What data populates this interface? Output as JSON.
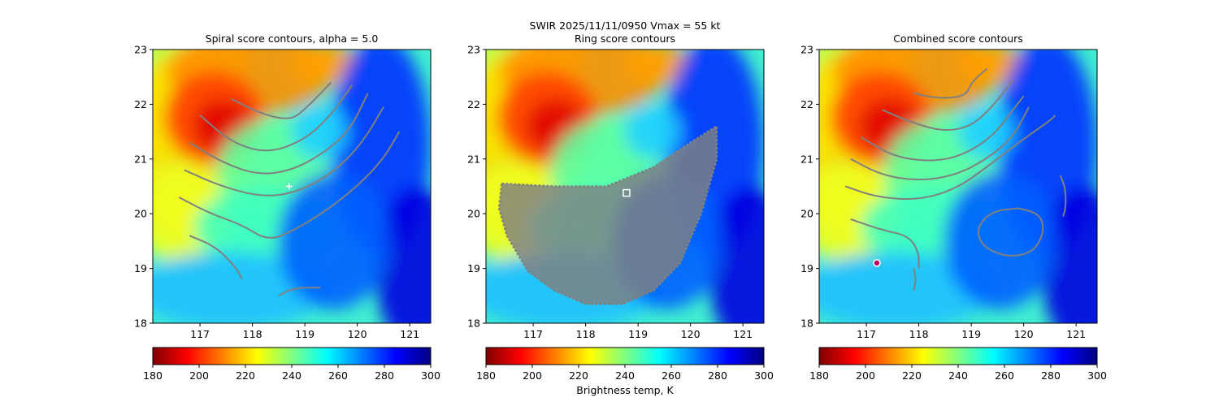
{
  "figure": {
    "suptitle": "SWIR  2025/11/11/0950    Vmax = 55 kt"
  },
  "colorbar_label": "Brightness temp, K",
  "colormap": [
    "#800000",
    "#ff0000",
    "#ff8000",
    "#ffff00",
    "#80ff80",
    "#00ffff",
    "#0080ff",
    "#0000ff",
    "#000080"
  ],
  "contour_color": "#808080",
  "chart_data": [
    {
      "type": "heatmap",
      "title": "Spiral score contours, alpha =  5.0",
      "xlim": [
        116.1,
        121.4
      ],
      "ylim": [
        18,
        23
      ],
      "xticks": [
        "117",
        "118",
        "119",
        "120",
        "121"
      ],
      "yticks": [
        "18",
        "19",
        "20",
        "21",
        "22",
        "23"
      ],
      "colorbar": {
        "range": [
          180,
          300
        ],
        "ticks": [
          "180",
          "200",
          "220",
          "240",
          "260",
          "280",
          "300"
        ]
      },
      "center_marker": {
        "lon": 118.7,
        "lat": 20.5,
        "style": "plus"
      },
      "contours": [
        [
          [
            117.6,
            22.1
          ],
          [
            118.1,
            21.85
          ],
          [
            118.7,
            21.7
          ],
          [
            119.0,
            21.9
          ],
          [
            119.5,
            22.4
          ]
        ],
        [
          [
            117.0,
            21.8
          ],
          [
            117.6,
            21.3
          ],
          [
            118.3,
            21.1
          ],
          [
            119.0,
            21.35
          ],
          [
            119.5,
            21.8
          ],
          [
            119.9,
            22.35
          ]
        ],
        [
          [
            116.8,
            21.3
          ],
          [
            117.4,
            20.95
          ],
          [
            118.1,
            20.7
          ],
          [
            118.8,
            20.8
          ],
          [
            119.5,
            21.2
          ],
          [
            119.9,
            21.6
          ],
          [
            120.2,
            22.2
          ]
        ],
        [
          [
            116.7,
            20.8
          ],
          [
            117.4,
            20.5
          ],
          [
            118.2,
            20.3
          ],
          [
            118.9,
            20.4
          ],
          [
            119.6,
            20.8
          ],
          [
            120.1,
            21.3
          ],
          [
            120.5,
            21.95
          ]
        ],
        [
          [
            116.6,
            20.3
          ],
          [
            117.2,
            20.0
          ],
          [
            117.8,
            19.8
          ],
          [
            118.3,
            19.5
          ],
          [
            118.8,
            19.7
          ],
          [
            119.4,
            20.05
          ],
          [
            120.0,
            20.5
          ],
          [
            120.5,
            21.0
          ],
          [
            120.8,
            21.5
          ]
        ],
        [
          [
            116.8,
            19.6
          ],
          [
            117.3,
            19.4
          ],
          [
            117.7,
            19.0
          ],
          [
            117.8,
            18.8
          ]
        ],
        [
          [
            118.5,
            18.5
          ],
          [
            118.8,
            18.65
          ],
          [
            119.3,
            18.65
          ]
        ]
      ],
      "ring_region": null
    },
    {
      "type": "heatmap",
      "title": "Ring score contours",
      "xlim": [
        116.1,
        121.4
      ],
      "ylim": [
        18,
        23
      ],
      "xticks": [
        "117",
        "118",
        "119",
        "120",
        "121"
      ],
      "yticks": [
        "18",
        "19",
        "20",
        "21",
        "22",
        "23"
      ],
      "colorbar": {
        "range": [
          180,
          300
        ],
        "ticks": [
          "180",
          "200",
          "220",
          "240",
          "260",
          "280",
          "300"
        ]
      },
      "center_marker": {
        "lon": 118.78,
        "lat": 20.38,
        "style": "square"
      },
      "contours": [],
      "ring_region": [
        [
          116.4,
          20.55
        ],
        [
          117.4,
          20.5
        ],
        [
          118.4,
          20.5
        ],
        [
          119.3,
          20.85
        ],
        [
          120.0,
          21.3
        ],
        [
          120.5,
          21.6
        ],
        [
          120.5,
          21.0
        ],
        [
          120.2,
          20.0
        ],
        [
          119.8,
          19.1
        ],
        [
          119.3,
          18.6
        ],
        [
          118.7,
          18.35
        ],
        [
          118.0,
          18.35
        ],
        [
          117.4,
          18.6
        ],
        [
          116.9,
          18.95
        ],
        [
          116.5,
          19.6
        ],
        [
          116.35,
          20.1
        ]
      ]
    },
    {
      "type": "heatmap",
      "title": "Combined score contours",
      "xlim": [
        116.1,
        121.4
      ],
      "ylim": [
        18,
        23
      ],
      "xticks": [
        "117",
        "118",
        "119",
        "120",
        "121"
      ],
      "yticks": [
        "18",
        "19",
        "20",
        "21",
        "22",
        "23"
      ],
      "colorbar": {
        "range": [
          180,
          300
        ],
        "ticks": [
          "180",
          "200",
          "220",
          "240",
          "260",
          "280",
          "300"
        ]
      },
      "center_marker": {
        "lon": 117.2,
        "lat": 19.1,
        "style": "circle"
      },
      "contours": [
        [
          [
            117.9,
            22.2
          ],
          [
            118.4,
            22.1
          ],
          [
            118.9,
            22.15
          ],
          [
            119.0,
            22.4
          ],
          [
            119.3,
            22.65
          ]
        ],
        [
          [
            117.3,
            21.9
          ],
          [
            117.9,
            21.65
          ],
          [
            118.5,
            21.5
          ],
          [
            119.0,
            21.6
          ],
          [
            119.4,
            21.95
          ],
          [
            119.8,
            22.45
          ]
        ],
        [
          [
            116.9,
            21.4
          ],
          [
            117.5,
            21.05
          ],
          [
            118.2,
            20.95
          ],
          [
            118.8,
            21.05
          ],
          [
            119.4,
            21.4
          ],
          [
            119.8,
            21.9
          ],
          [
            120.0,
            22.15
          ]
        ],
        [
          [
            116.7,
            21.0
          ],
          [
            117.3,
            20.7
          ],
          [
            118.0,
            20.6
          ],
          [
            118.7,
            20.7
          ],
          [
            119.3,
            21.0
          ],
          [
            119.8,
            21.4
          ],
          [
            120.1,
            21.95
          ]
        ],
        [
          [
            116.6,
            20.5
          ],
          [
            117.2,
            20.3
          ],
          [
            118.0,
            20.25
          ],
          [
            118.7,
            20.45
          ],
          [
            119.3,
            20.85
          ],
          [
            119.9,
            21.3
          ],
          [
            120.5,
            21.7
          ],
          [
            120.6,
            21.8
          ]
        ],
        [
          [
            116.7,
            19.9
          ],
          [
            117.3,
            19.7
          ],
          [
            117.8,
            19.6
          ],
          [
            118.0,
            19.3
          ],
          [
            118.0,
            19.0
          ]
        ],
        [
          [
            117.9,
            19.0
          ],
          [
            117.95,
            18.8
          ],
          [
            117.9,
            18.6
          ]
        ],
        [
          [
            119.9,
            20.1
          ],
          [
            120.3,
            20.0
          ],
          [
            120.4,
            19.7
          ],
          [
            120.2,
            19.3
          ],
          [
            119.7,
            19.2
          ],
          [
            119.2,
            19.4
          ],
          [
            119.1,
            19.75
          ],
          [
            119.4,
            20.05
          ],
          [
            119.9,
            20.1
          ]
        ],
        [
          [
            120.7,
            20.7
          ],
          [
            120.8,
            20.45
          ],
          [
            120.8,
            20.1
          ],
          [
            120.75,
            19.95
          ]
        ]
      ],
      "ring_region": null
    }
  ]
}
